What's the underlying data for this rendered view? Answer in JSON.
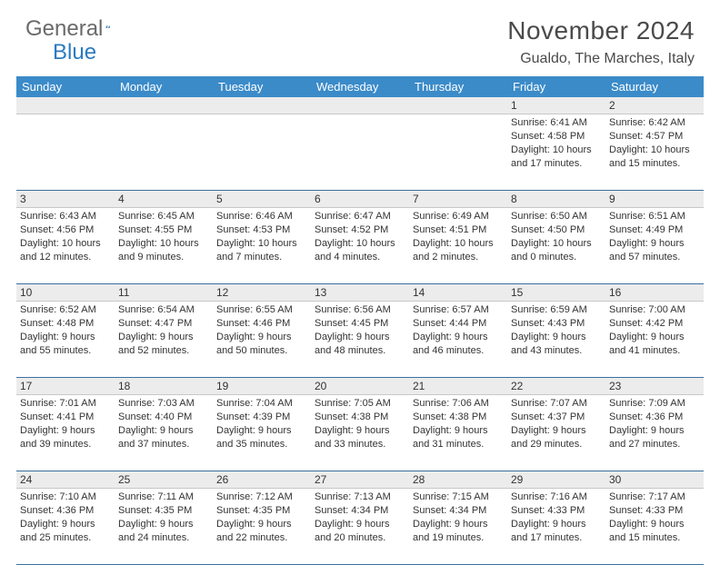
{
  "logo": {
    "text1": "General",
    "text2": "Blue"
  },
  "title": "November 2024",
  "location": "Gualdo, The Marches, Italy",
  "colors": {
    "header_bar": "#3b8bc9",
    "daynum_bg": "#ececec",
    "week_divider": "#3b6fa0",
    "text": "#333333",
    "title_text": "#4a4a4a",
    "logo_gray": "#6a6a6a",
    "logo_blue": "#2b7bbf"
  },
  "day_labels": [
    "Sunday",
    "Monday",
    "Tuesday",
    "Wednesday",
    "Thursday",
    "Friday",
    "Saturday"
  ],
  "weeks": [
    [
      {
        "n": "",
        "lines": []
      },
      {
        "n": "",
        "lines": []
      },
      {
        "n": "",
        "lines": []
      },
      {
        "n": "",
        "lines": []
      },
      {
        "n": "",
        "lines": []
      },
      {
        "n": "1",
        "lines": [
          "Sunrise: 6:41 AM",
          "Sunset: 4:58 PM",
          "Daylight: 10 hours",
          "and 17 minutes."
        ]
      },
      {
        "n": "2",
        "lines": [
          "Sunrise: 6:42 AM",
          "Sunset: 4:57 PM",
          "Daylight: 10 hours",
          "and 15 minutes."
        ]
      }
    ],
    [
      {
        "n": "3",
        "lines": [
          "Sunrise: 6:43 AM",
          "Sunset: 4:56 PM",
          "Daylight: 10 hours",
          "and 12 minutes."
        ]
      },
      {
        "n": "4",
        "lines": [
          "Sunrise: 6:45 AM",
          "Sunset: 4:55 PM",
          "Daylight: 10 hours",
          "and 9 minutes."
        ]
      },
      {
        "n": "5",
        "lines": [
          "Sunrise: 6:46 AM",
          "Sunset: 4:53 PM",
          "Daylight: 10 hours",
          "and 7 minutes."
        ]
      },
      {
        "n": "6",
        "lines": [
          "Sunrise: 6:47 AM",
          "Sunset: 4:52 PM",
          "Daylight: 10 hours",
          "and 4 minutes."
        ]
      },
      {
        "n": "7",
        "lines": [
          "Sunrise: 6:49 AM",
          "Sunset: 4:51 PM",
          "Daylight: 10 hours",
          "and 2 minutes."
        ]
      },
      {
        "n": "8",
        "lines": [
          "Sunrise: 6:50 AM",
          "Sunset: 4:50 PM",
          "Daylight: 10 hours",
          "and 0 minutes."
        ]
      },
      {
        "n": "9",
        "lines": [
          "Sunrise: 6:51 AM",
          "Sunset: 4:49 PM",
          "Daylight: 9 hours",
          "and 57 minutes."
        ]
      }
    ],
    [
      {
        "n": "10",
        "lines": [
          "Sunrise: 6:52 AM",
          "Sunset: 4:48 PM",
          "Daylight: 9 hours",
          "and 55 minutes."
        ]
      },
      {
        "n": "11",
        "lines": [
          "Sunrise: 6:54 AM",
          "Sunset: 4:47 PM",
          "Daylight: 9 hours",
          "and 52 minutes."
        ]
      },
      {
        "n": "12",
        "lines": [
          "Sunrise: 6:55 AM",
          "Sunset: 4:46 PM",
          "Daylight: 9 hours",
          "and 50 minutes."
        ]
      },
      {
        "n": "13",
        "lines": [
          "Sunrise: 6:56 AM",
          "Sunset: 4:45 PM",
          "Daylight: 9 hours",
          "and 48 minutes."
        ]
      },
      {
        "n": "14",
        "lines": [
          "Sunrise: 6:57 AM",
          "Sunset: 4:44 PM",
          "Daylight: 9 hours",
          "and 46 minutes."
        ]
      },
      {
        "n": "15",
        "lines": [
          "Sunrise: 6:59 AM",
          "Sunset: 4:43 PM",
          "Daylight: 9 hours",
          "and 43 minutes."
        ]
      },
      {
        "n": "16",
        "lines": [
          "Sunrise: 7:00 AM",
          "Sunset: 4:42 PM",
          "Daylight: 9 hours",
          "and 41 minutes."
        ]
      }
    ],
    [
      {
        "n": "17",
        "lines": [
          "Sunrise: 7:01 AM",
          "Sunset: 4:41 PM",
          "Daylight: 9 hours",
          "and 39 minutes."
        ]
      },
      {
        "n": "18",
        "lines": [
          "Sunrise: 7:03 AM",
          "Sunset: 4:40 PM",
          "Daylight: 9 hours",
          "and 37 minutes."
        ]
      },
      {
        "n": "19",
        "lines": [
          "Sunrise: 7:04 AM",
          "Sunset: 4:39 PM",
          "Daylight: 9 hours",
          "and 35 minutes."
        ]
      },
      {
        "n": "20",
        "lines": [
          "Sunrise: 7:05 AM",
          "Sunset: 4:38 PM",
          "Daylight: 9 hours",
          "and 33 minutes."
        ]
      },
      {
        "n": "21",
        "lines": [
          "Sunrise: 7:06 AM",
          "Sunset: 4:38 PM",
          "Daylight: 9 hours",
          "and 31 minutes."
        ]
      },
      {
        "n": "22",
        "lines": [
          "Sunrise: 7:07 AM",
          "Sunset: 4:37 PM",
          "Daylight: 9 hours",
          "and 29 minutes."
        ]
      },
      {
        "n": "23",
        "lines": [
          "Sunrise: 7:09 AM",
          "Sunset: 4:36 PM",
          "Daylight: 9 hours",
          "and 27 minutes."
        ]
      }
    ],
    [
      {
        "n": "24",
        "lines": [
          "Sunrise: 7:10 AM",
          "Sunset: 4:36 PM",
          "Daylight: 9 hours",
          "and 25 minutes."
        ]
      },
      {
        "n": "25",
        "lines": [
          "Sunrise: 7:11 AM",
          "Sunset: 4:35 PM",
          "Daylight: 9 hours",
          "and 24 minutes."
        ]
      },
      {
        "n": "26",
        "lines": [
          "Sunrise: 7:12 AM",
          "Sunset: 4:35 PM",
          "Daylight: 9 hours",
          "and 22 minutes."
        ]
      },
      {
        "n": "27",
        "lines": [
          "Sunrise: 7:13 AM",
          "Sunset: 4:34 PM",
          "Daylight: 9 hours",
          "and 20 minutes."
        ]
      },
      {
        "n": "28",
        "lines": [
          "Sunrise: 7:15 AM",
          "Sunset: 4:34 PM",
          "Daylight: 9 hours",
          "and 19 minutes."
        ]
      },
      {
        "n": "29",
        "lines": [
          "Sunrise: 7:16 AM",
          "Sunset: 4:33 PM",
          "Daylight: 9 hours",
          "and 17 minutes."
        ]
      },
      {
        "n": "30",
        "lines": [
          "Sunrise: 7:17 AM",
          "Sunset: 4:33 PM",
          "Daylight: 9 hours",
          "and 15 minutes."
        ]
      }
    ]
  ]
}
